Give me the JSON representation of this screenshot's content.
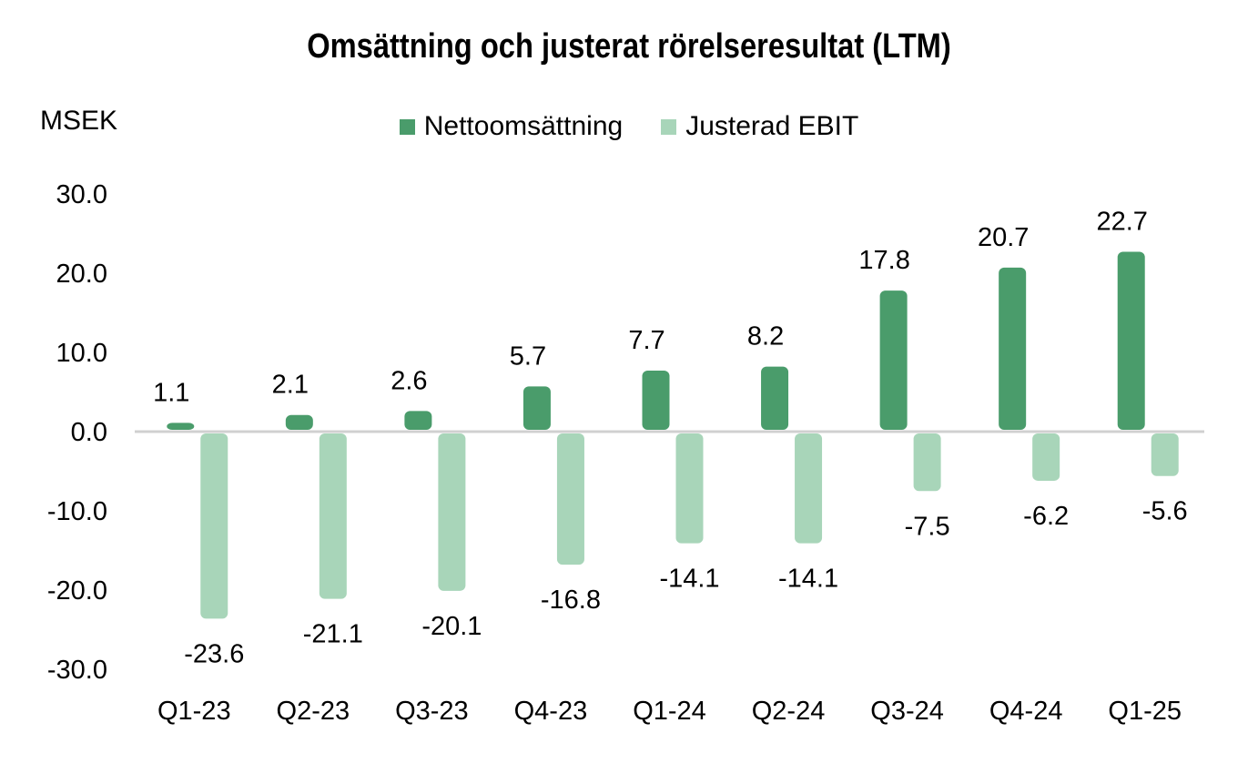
{
  "chart_data": {
    "type": "bar",
    "title": "Omsättning och justerat rörelseresultat (LTM)",
    "unit_label": "MSEK",
    "categories": [
      "Q1-23",
      "Q2-23",
      "Q3-23",
      "Q4-23",
      "Q1-24",
      "Q2-24",
      "Q3-24",
      "Q4-24",
      "Q1-25"
    ],
    "series": [
      {
        "name": "Nettoomsättning",
        "color": "#4a9c6b",
        "values": [
          1.1,
          2.1,
          2.6,
          5.7,
          7.7,
          8.2,
          17.8,
          20.7,
          22.7
        ],
        "labels": [
          "1.1",
          "2.1",
          "2.6",
          "5.7",
          "7.7",
          "8.2",
          "17.8",
          "20.7",
          "22.7"
        ]
      },
      {
        "name": "Justerad EBIT",
        "color": "#a8d5b9",
        "values": [
          -23.6,
          -21.1,
          -20.1,
          -16.8,
          -14.1,
          -14.1,
          -7.5,
          -6.2,
          -5.6
        ],
        "labels": [
          "-23.6",
          "-21.1",
          "-20.1",
          "-16.8",
          "-14.1",
          "-14.1",
          "-7.5",
          "-6.2",
          "-5.6"
        ]
      }
    ],
    "ylim": [
      -30,
      30
    ],
    "yticks": [
      "30.0",
      "20.0",
      "10.0",
      "0.0",
      "-10.0",
      "-20.0",
      "-30.0"
    ],
    "ytick_values": [
      30,
      20,
      10,
      0,
      -10,
      -20,
      -30
    ],
    "grid": false,
    "legend_position": "top-center",
    "zero_line_color": "#d0d0d0"
  }
}
